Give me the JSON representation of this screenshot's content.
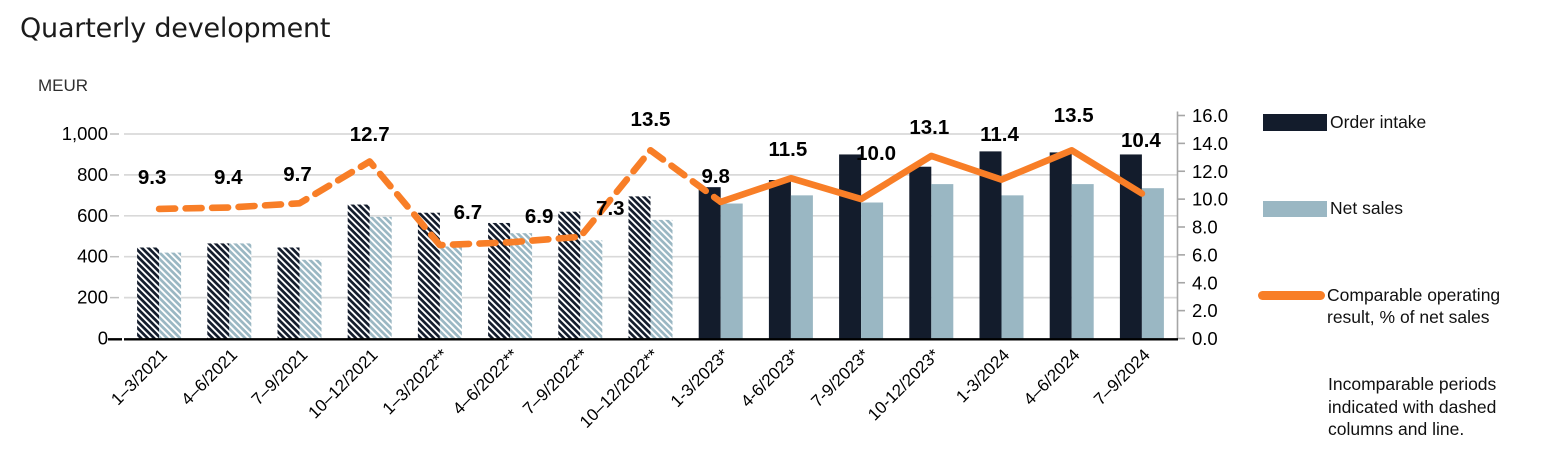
{
  "page": {
    "title": "Quarterly development"
  },
  "axis_unit": "MEUR",
  "chart_data": {
    "type": "bar",
    "subtype": "combo-bar-line",
    "title": "Quarterly development",
    "xlabel": "",
    "ylabel_left": "MEUR",
    "ylabel_right": "%",
    "categories": [
      "1–3/2021",
      "4–6/2021",
      "7–9/2021",
      "10–12/2021",
      "1–3/2022**",
      "4–6/2022**",
      "7–9/2022**",
      "10–12/2022**",
      "1-3/2023*",
      "4-6/2023*",
      "7-9/2023*",
      "10-12/2023*",
      "1-3/2024",
      "4–6/2024",
      "7–9/2024"
    ],
    "incomparable": [
      true,
      true,
      true,
      true,
      true,
      true,
      true,
      true,
      false,
      false,
      false,
      false,
      false,
      false,
      false
    ],
    "series": [
      {
        "name": "Order intake",
        "type": "bar",
        "axis": "left",
        "values": [
          445,
          465,
          445,
          655,
          615,
          565,
          620,
          695,
          740,
          775,
          900,
          840,
          915,
          910,
          900
        ]
      },
      {
        "name": "Net sales",
        "type": "bar",
        "axis": "left",
        "values": [
          420,
          465,
          385,
          595,
          450,
          515,
          480,
          580,
          660,
          700,
          665,
          755,
          700,
          755,
          735
        ]
      },
      {
        "name": "Comparable operating result, % of net sales",
        "type": "line",
        "axis": "right",
        "values": [
          9.3,
          9.4,
          9.7,
          12.7,
          6.7,
          6.9,
          7.3,
          13.5,
          9.8,
          11.5,
          10.0,
          13.1,
          11.4,
          13.5,
          10.4
        ]
      }
    ],
    "left_axis": {
      "min": 0,
      "max": 1000,
      "tick_labels": [
        "0",
        "200",
        "400",
        "600",
        "800",
        "1,000"
      ],
      "tick_values": [
        0,
        200,
        400,
        600,
        800,
        1000
      ]
    },
    "right_axis": {
      "min": 0,
      "max": 16,
      "tick_labels": [
        "0.0",
        "2.0",
        "4.0",
        "6.0",
        "8.0",
        "10.0",
        "12.0",
        "14.0",
        "16.0"
      ],
      "tick_values": [
        0,
        2,
        4,
        6,
        8,
        10,
        12,
        14,
        16
      ]
    },
    "grid": true,
    "legend_position": "right"
  },
  "legend": {
    "order_intake": "Order intake",
    "net_sales": "Net sales",
    "operating_result": "Comparable operating result, % of net sales"
  },
  "note": "Incomparable periods indicated with dashed columns and line.",
  "colors": {
    "order_intake": "#131c2c",
    "net_sales": "#9ab7c3",
    "line": "#f87e27",
    "gridline": "#d9d9d9",
    "axis_line": "#a6a6a6",
    "tick": "#bfbfbf",
    "baseline": "#000000",
    "text": "#000000"
  }
}
